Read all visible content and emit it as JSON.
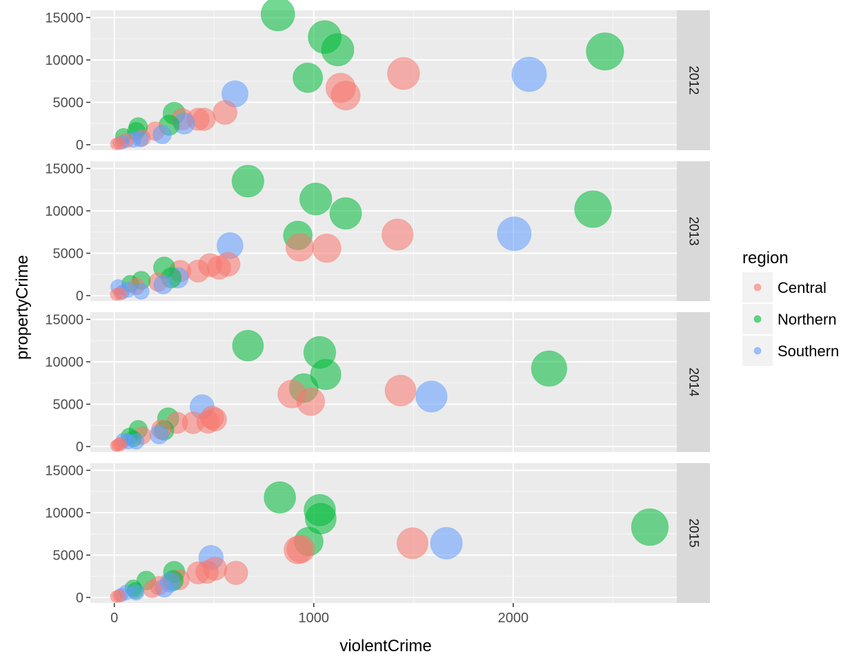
{
  "chart_data": {
    "type": "scatter",
    "facet_by": "year",
    "facet_labels": [
      "2012",
      "2013",
      "2014",
      "2015"
    ],
    "xlabel": "violentCrime",
    "ylabel": "propertyCrime",
    "xlim": [
      -120,
      2820
    ],
    "ylim": [
      -650,
      15850
    ],
    "x_ticks": [
      0,
      1000,
      2000
    ],
    "y_ticks": [
      0,
      5000,
      10000,
      15000
    ],
    "grid": true,
    "legend": {
      "title": "region",
      "placement": "right",
      "entries": [
        {
          "name": "Central",
          "color": "#F8766D"
        },
        {
          "name": "Northern",
          "color": "#00BA38"
        },
        {
          "name": "Southern",
          "color": "#619CFF"
        }
      ]
    },
    "panels": [
      {
        "year": "2012",
        "points": [
          {
            "x": 820,
            "y": 15400,
            "region": "Northern"
          },
          {
            "x": 1055,
            "y": 12700,
            "region": "Northern"
          },
          {
            "x": 1120,
            "y": 11200,
            "region": "Northern"
          },
          {
            "x": 2460,
            "y": 11000,
            "region": "Northern"
          },
          {
            "x": 2080,
            "y": 8300,
            "region": "Southern"
          },
          {
            "x": 1450,
            "y": 8400,
            "region": "Central"
          },
          {
            "x": 970,
            "y": 7900,
            "region": "Northern"
          },
          {
            "x": 1135,
            "y": 6700,
            "region": "Central"
          },
          {
            "x": 1160,
            "y": 5800,
            "region": "Central"
          },
          {
            "x": 605,
            "y": 6000,
            "region": "Southern"
          },
          {
            "x": 555,
            "y": 3800,
            "region": "Central"
          },
          {
            "x": 300,
            "y": 3700,
            "region": "Northern"
          },
          {
            "x": 340,
            "y": 3000,
            "region": "Central"
          },
          {
            "x": 420,
            "y": 3000,
            "region": "Central"
          },
          {
            "x": 450,
            "y": 3000,
            "region": "Central"
          },
          {
            "x": 350,
            "y": 2500,
            "region": "Southern"
          },
          {
            "x": 275,
            "y": 2300,
            "region": "Northern"
          },
          {
            "x": 205,
            "y": 1600,
            "region": "Central"
          },
          {
            "x": 120,
            "y": 2100,
            "region": "Northern"
          },
          {
            "x": 240,
            "y": 1200,
            "region": "Southern"
          },
          {
            "x": 110,
            "y": 1600,
            "region": "Northern"
          },
          {
            "x": 45,
            "y": 1000,
            "region": "Northern"
          },
          {
            "x": 140,
            "y": 800,
            "region": "Central"
          },
          {
            "x": 95,
            "y": 600,
            "region": "Southern"
          },
          {
            "x": 130,
            "y": 700,
            "region": "Southern"
          },
          {
            "x": 60,
            "y": 500,
            "region": "Central"
          },
          {
            "x": 40,
            "y": 300,
            "region": "Southern"
          },
          {
            "x": 10,
            "y": 100,
            "region": "Central"
          },
          {
            "x": 25,
            "y": 200,
            "region": "Central"
          }
        ]
      },
      {
        "year": "2013",
        "points": [
          {
            "x": 670,
            "y": 13500,
            "region": "Northern"
          },
          {
            "x": 1010,
            "y": 11400,
            "region": "Northern"
          },
          {
            "x": 1160,
            "y": 9700,
            "region": "Northern"
          },
          {
            "x": 2400,
            "y": 10200,
            "region": "Northern"
          },
          {
            "x": 2005,
            "y": 7300,
            "region": "Southern"
          },
          {
            "x": 1420,
            "y": 7200,
            "region": "Central"
          },
          {
            "x": 920,
            "y": 7100,
            "region": "Northern"
          },
          {
            "x": 930,
            "y": 5700,
            "region": "Central"
          },
          {
            "x": 1065,
            "y": 5600,
            "region": "Central"
          },
          {
            "x": 580,
            "y": 5900,
            "region": "Southern"
          },
          {
            "x": 570,
            "y": 3700,
            "region": "Central"
          },
          {
            "x": 480,
            "y": 3600,
            "region": "Central"
          },
          {
            "x": 525,
            "y": 3300,
            "region": "Central"
          },
          {
            "x": 420,
            "y": 2900,
            "region": "Central"
          },
          {
            "x": 250,
            "y": 3300,
            "region": "Northern"
          },
          {
            "x": 330,
            "y": 2900,
            "region": "Central"
          },
          {
            "x": 285,
            "y": 2100,
            "region": "Northern"
          },
          {
            "x": 320,
            "y": 2100,
            "region": "Southern"
          },
          {
            "x": 220,
            "y": 1600,
            "region": "Central"
          },
          {
            "x": 135,
            "y": 1800,
            "region": "Northern"
          },
          {
            "x": 245,
            "y": 1300,
            "region": "Southern"
          },
          {
            "x": 80,
            "y": 1400,
            "region": "Northern"
          },
          {
            "x": 20,
            "y": 1000,
            "region": "Southern"
          },
          {
            "x": 110,
            "y": 1100,
            "region": "Central"
          },
          {
            "x": 70,
            "y": 700,
            "region": "Southern"
          },
          {
            "x": 135,
            "y": 500,
            "region": "Southern"
          },
          {
            "x": 40,
            "y": 400,
            "region": "Southern"
          },
          {
            "x": 10,
            "y": 150,
            "region": "Central"
          },
          {
            "x": 30,
            "y": 250,
            "region": "Central"
          }
        ]
      },
      {
        "year": "2014",
        "points": [
          {
            "x": 670,
            "y": 11900,
            "region": "Northern"
          },
          {
            "x": 1030,
            "y": 11100,
            "region": "Northern"
          },
          {
            "x": 1060,
            "y": 8500,
            "region": "Northern"
          },
          {
            "x": 2180,
            "y": 9200,
            "region": "Northern"
          },
          {
            "x": 1590,
            "y": 5900,
            "region": "Southern"
          },
          {
            "x": 1435,
            "y": 6600,
            "region": "Central"
          },
          {
            "x": 950,
            "y": 6900,
            "region": "Northern"
          },
          {
            "x": 890,
            "y": 6200,
            "region": "Central"
          },
          {
            "x": 985,
            "y": 5300,
            "region": "Central"
          },
          {
            "x": 440,
            "y": 4700,
            "region": "Southern"
          },
          {
            "x": 490,
            "y": 3400,
            "region": "Central"
          },
          {
            "x": 505,
            "y": 3200,
            "region": "Central"
          },
          {
            "x": 470,
            "y": 2900,
            "region": "Central"
          },
          {
            "x": 395,
            "y": 2800,
            "region": "Central"
          },
          {
            "x": 315,
            "y": 2800,
            "region": "Central"
          },
          {
            "x": 270,
            "y": 3300,
            "region": "Northern"
          },
          {
            "x": 235,
            "y": 2000,
            "region": "Central"
          },
          {
            "x": 250,
            "y": 1900,
            "region": "Northern"
          },
          {
            "x": 225,
            "y": 1400,
            "region": "Southern"
          },
          {
            "x": 120,
            "y": 2000,
            "region": "Northern"
          },
          {
            "x": 140,
            "y": 1300,
            "region": "Central"
          },
          {
            "x": 75,
            "y": 1200,
            "region": "Northern"
          },
          {
            "x": 95,
            "y": 900,
            "region": "Northern"
          },
          {
            "x": 45,
            "y": 700,
            "region": "Southern"
          },
          {
            "x": 110,
            "y": 600,
            "region": "Southern"
          },
          {
            "x": 70,
            "y": 600,
            "region": "Southern"
          },
          {
            "x": 30,
            "y": 300,
            "region": "Central"
          },
          {
            "x": 10,
            "y": 100,
            "region": "Central"
          },
          {
            "x": 20,
            "y": 200,
            "region": "Central"
          }
        ]
      },
      {
        "year": "2015",
        "points": [
          {
            "x": 830,
            "y": 11800,
            "region": "Northern"
          },
          {
            "x": 1030,
            "y": 10300,
            "region": "Northern"
          },
          {
            "x": 1035,
            "y": 9300,
            "region": "Northern"
          },
          {
            "x": 2685,
            "y": 8300,
            "region": "Northern"
          },
          {
            "x": 1665,
            "y": 6400,
            "region": "Southern"
          },
          {
            "x": 1495,
            "y": 6400,
            "region": "Central"
          },
          {
            "x": 975,
            "y": 6600,
            "region": "Northern"
          },
          {
            "x": 920,
            "y": 5600,
            "region": "Central"
          },
          {
            "x": 935,
            "y": 5700,
            "region": "Central"
          },
          {
            "x": 485,
            "y": 4700,
            "region": "Southern"
          },
          {
            "x": 505,
            "y": 3400,
            "region": "Central"
          },
          {
            "x": 465,
            "y": 3000,
            "region": "Central"
          },
          {
            "x": 420,
            "y": 2900,
            "region": "Central"
          },
          {
            "x": 610,
            "y": 2900,
            "region": "Central"
          },
          {
            "x": 300,
            "y": 3000,
            "region": "Northern"
          },
          {
            "x": 325,
            "y": 2100,
            "region": "Central"
          },
          {
            "x": 295,
            "y": 2000,
            "region": "Northern"
          },
          {
            "x": 280,
            "y": 1800,
            "region": "Southern"
          },
          {
            "x": 160,
            "y": 2000,
            "region": "Northern"
          },
          {
            "x": 225,
            "y": 1400,
            "region": "Central"
          },
          {
            "x": 250,
            "y": 1100,
            "region": "Southern"
          },
          {
            "x": 190,
            "y": 1000,
            "region": "Central"
          },
          {
            "x": 95,
            "y": 1100,
            "region": "Northern"
          },
          {
            "x": 105,
            "y": 800,
            "region": "Northern"
          },
          {
            "x": 60,
            "y": 600,
            "region": "Southern"
          },
          {
            "x": 110,
            "y": 600,
            "region": "Southern"
          },
          {
            "x": 35,
            "y": 300,
            "region": "Southern"
          },
          {
            "x": 10,
            "y": 100,
            "region": "Central"
          },
          {
            "x": 25,
            "y": 200,
            "region": "Central"
          }
        ]
      }
    ]
  }
}
